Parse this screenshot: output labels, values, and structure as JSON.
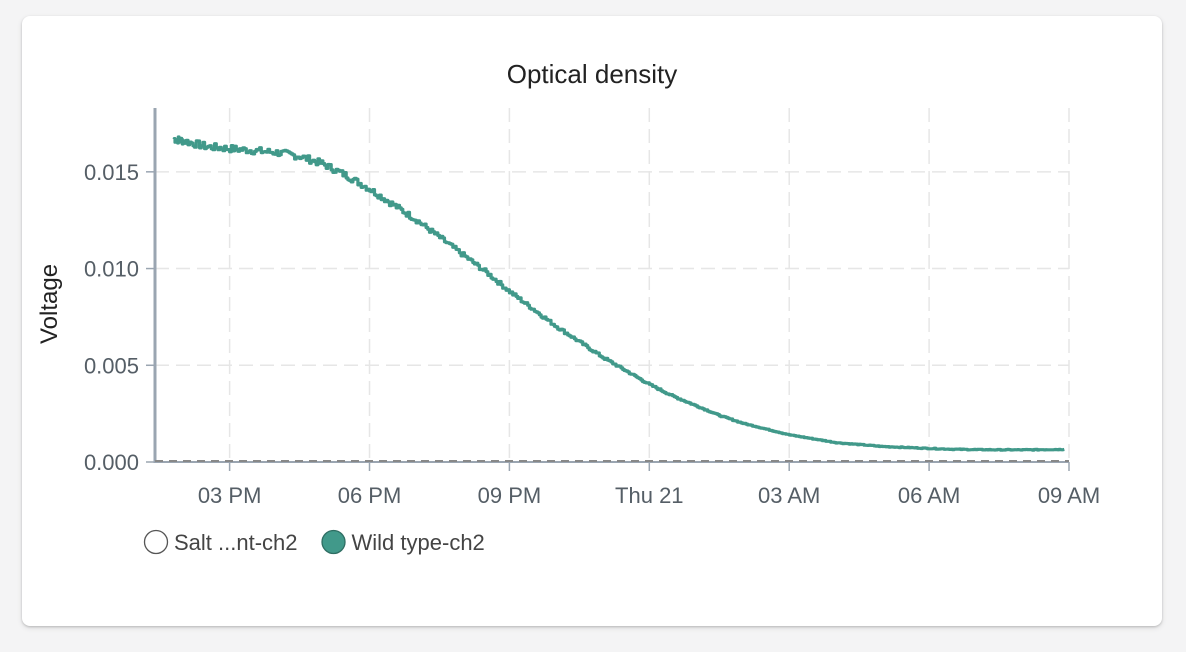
{
  "chart_data": {
    "type": "line",
    "title": "Optical density",
    "ylabel": "Voltage",
    "xlabel": "",
    "ylim": [
      0,
      0.0183
    ],
    "xlim": [
      13.4,
      33.0
    ],
    "y_ticks": [
      0.0,
      0.005,
      0.01,
      0.015
    ],
    "y_tick_labels": [
      "0.000",
      "0.005",
      "0.010",
      "0.015"
    ],
    "x_ticks": [
      15,
      18,
      21,
      24,
      27,
      30,
      33
    ],
    "x_tick_labels": [
      "03 PM",
      "06 PM",
      "09 PM",
      "Thu 21",
      "03 AM",
      "06 AM",
      "09 AM"
    ],
    "grid": true,
    "legend_position": "bottom-left",
    "series": [
      {
        "name": "Salt ...nt-ch2",
        "color": "#ffffff",
        "visible": false,
        "x": [],
        "y": []
      },
      {
        "name": "Wild type-ch2",
        "color": "#41998a",
        "visible": true,
        "x": [
          13.8,
          14.0,
          14.5,
          15.0,
          15.5,
          16.0,
          16.5,
          17.0,
          17.5,
          18.0,
          18.5,
          19.0,
          19.5,
          20.0,
          20.5,
          21.0,
          21.5,
          22.0,
          22.5,
          23.0,
          23.5,
          24.0,
          24.5,
          25.0,
          25.5,
          26.0,
          26.5,
          27.0,
          27.5,
          28.0,
          28.5,
          29.0,
          29.5,
          30.0,
          30.5,
          31.0,
          31.5,
          32.0,
          32.5,
          32.9
        ],
        "y": [
          0.0167,
          0.0166,
          0.0163,
          0.0162,
          0.0161,
          0.016,
          0.0158,
          0.0154,
          0.0148,
          0.0141,
          0.0133,
          0.0125,
          0.0116,
          0.0107,
          0.0098,
          0.0088,
          0.0079,
          0.007,
          0.0062,
          0.0054,
          0.0047,
          0.004,
          0.0034,
          0.0029,
          0.0024,
          0.002,
          0.0017,
          0.0014,
          0.0012,
          0.001,
          0.0009,
          0.0008,
          0.00075,
          0.0007,
          0.00066,
          0.00064,
          0.00063,
          0.00063,
          0.00064,
          0.00065
        ]
      }
    ]
  }
}
